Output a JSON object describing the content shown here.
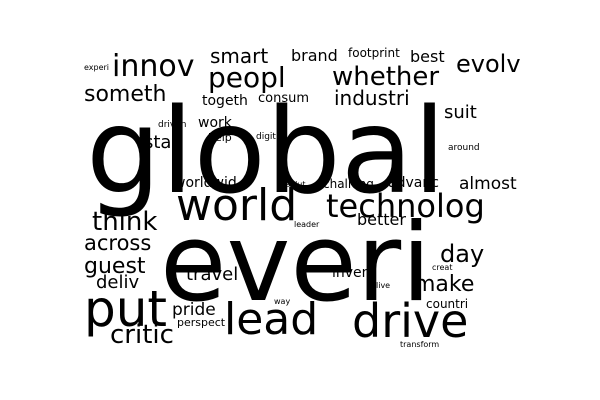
{
  "colors": {
    "background": "#ffffff",
    "text": "#000000"
  },
  "words": [
    "global",
    "everi",
    "world",
    "technolog",
    "put",
    "lead",
    "drive",
    "innov",
    "peopl",
    "whether",
    "evolv",
    "smart",
    "brand",
    "footprint",
    "best",
    "someth",
    "industri",
    "togeth",
    "consum",
    "suit",
    "work",
    "stay",
    "help",
    "digit",
    "driven",
    "around",
    "experi",
    "worldwid",
    "challeng",
    "advanc",
    "almost",
    "think",
    "solut",
    "better",
    "across",
    "leader",
    "day",
    "guest",
    "travel",
    "invent",
    "creat",
    "make",
    "deliv",
    "live",
    "pride",
    "way",
    "countri",
    "perspect",
    "critic",
    "transform"
  ]
}
